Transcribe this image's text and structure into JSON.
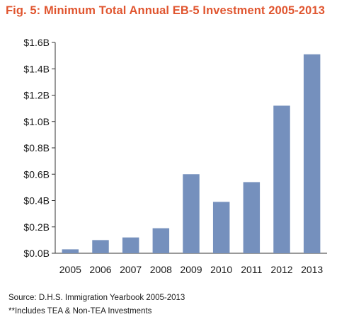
{
  "chart_data": {
    "type": "bar",
    "title": "Fig. 5: Minimum Total Annual EB-5 Investment 2005-2013",
    "categories": [
      "2005",
      "2006",
      "2007",
      "2008",
      "2009",
      "2010",
      "2011",
      "2012",
      "2013"
    ],
    "values": [
      0.03,
      0.1,
      0.12,
      0.19,
      0.6,
      0.39,
      0.54,
      1.12,
      1.51
    ],
    "y_unit": "billion USD",
    "ylim": [
      0,
      1.6
    ],
    "yticks": [
      0,
      0.2,
      0.4,
      0.6,
      0.8,
      1.0,
      1.2,
      1.4,
      1.6
    ],
    "ytick_labels": [
      "$0.0B",
      "$0.2B",
      "$0.4B",
      "$0.6B",
      "$0.8B",
      "$1.0B",
      "$1.2B",
      "$1.4B",
      "$1.6B"
    ],
    "xlabel": "",
    "ylabel": "",
    "grid": false,
    "legend": "none",
    "bar_color": "#7590bd"
  },
  "footnotes": {
    "source": "Source: D.H.S. Immigration Yearbook 2005-2013",
    "note": "**Includes TEA & Non-TEA Investments"
  }
}
